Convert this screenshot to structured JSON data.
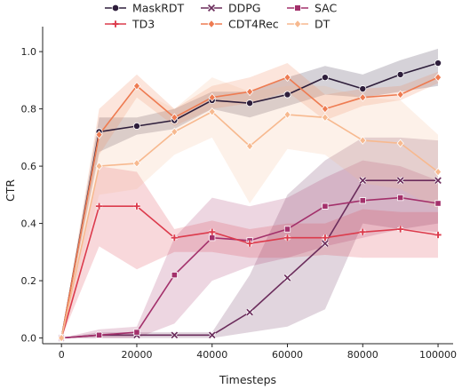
{
  "chart_data": {
    "type": "line",
    "xlabel": "Timesteps",
    "ylabel": "CTR",
    "xlim": [
      -5000,
      104000
    ],
    "ylim": [
      -0.02,
      1.05
    ],
    "x_ticks": [
      0,
      20000,
      40000,
      60000,
      80000,
      100000
    ],
    "y_ticks": [
      0.0,
      0.2,
      0.4,
      0.6,
      0.8,
      1.0
    ],
    "grid": false,
    "legend_position": "top-center",
    "x": [
      0,
      10000,
      20000,
      30000,
      40000,
      50000,
      60000,
      70000,
      80000,
      90000,
      100000
    ],
    "series": [
      {
        "name": "MaskRDT",
        "color": "#2e1e3b",
        "marker": "circle",
        "values": [
          0.0,
          0.72,
          0.74,
          0.76,
          0.83,
          0.82,
          0.85,
          0.91,
          0.87,
          0.92,
          0.96
        ],
        "lower": [
          0.0,
          0.65,
          0.71,
          0.73,
          0.8,
          0.77,
          0.81,
          0.85,
          0.84,
          0.86,
          0.88
        ],
        "upper": [
          0.0,
          0.77,
          0.77,
          0.8,
          0.86,
          0.86,
          0.91,
          0.95,
          0.92,
          0.97,
          1.01
        ]
      },
      {
        "name": "DDPG",
        "color": "#6b2d5c",
        "marker": "x",
        "values": [
          0.0,
          0.01,
          0.01,
          0.01,
          0.01,
          0.09,
          0.21,
          0.33,
          0.55,
          0.55,
          0.55
        ],
        "lower": [
          0.0,
          0.0,
          0.0,
          0.0,
          0.0,
          0.02,
          0.04,
          0.1,
          0.4,
          0.38,
          0.4
        ],
        "upper": [
          0.0,
          0.02,
          0.02,
          0.02,
          0.02,
          0.22,
          0.5,
          0.62,
          0.7,
          0.7,
          0.69
        ]
      },
      {
        "name": "SAC",
        "color": "#a3306b",
        "marker": "square",
        "values": [
          0.0,
          0.01,
          0.02,
          0.22,
          0.35,
          0.34,
          0.38,
          0.46,
          0.48,
          0.49,
          0.47
        ],
        "lower": [
          0.0,
          0.0,
          0.0,
          0.05,
          0.2,
          0.25,
          0.28,
          0.32,
          0.35,
          0.38,
          0.37
        ],
        "upper": [
          0.0,
          0.03,
          0.04,
          0.35,
          0.49,
          0.46,
          0.49,
          0.56,
          0.62,
          0.6,
          0.55
        ]
      },
      {
        "name": "TD3",
        "color": "#dc3b4c",
        "marker": "plus",
        "values": [
          0.0,
          0.46,
          0.46,
          0.35,
          0.37,
          0.33,
          0.35,
          0.35,
          0.37,
          0.38,
          0.36
        ],
        "lower": [
          0.0,
          0.32,
          0.24,
          0.3,
          0.3,
          0.28,
          0.28,
          0.29,
          0.28,
          0.28,
          0.28
        ],
        "upper": [
          0.0,
          0.6,
          0.58,
          0.38,
          0.41,
          0.38,
          0.4,
          0.4,
          0.45,
          0.44,
          0.44
        ]
      },
      {
        "name": "CDT4Rec",
        "color": "#ee7b51",
        "marker": "diamond",
        "values": [
          0.0,
          0.71,
          0.88,
          0.77,
          0.84,
          0.86,
          0.91,
          0.8,
          0.84,
          0.85,
          0.91
        ],
        "lower": [
          0.0,
          0.64,
          0.84,
          0.74,
          0.8,
          0.82,
          0.86,
          0.76,
          0.81,
          0.83,
          0.89
        ],
        "upper": [
          0.0,
          0.8,
          0.92,
          0.8,
          0.88,
          0.91,
          0.96,
          0.85,
          0.87,
          0.88,
          0.93
        ]
      },
      {
        "name": "DT",
        "color": "#f7b98f",
        "marker": "diamond",
        "values": [
          0.0,
          0.6,
          0.61,
          0.72,
          0.79,
          0.67,
          0.78,
          0.77,
          0.69,
          0.68,
          0.58
        ],
        "lower": [
          0.0,
          0.5,
          0.52,
          0.64,
          0.7,
          0.47,
          0.66,
          0.64,
          0.54,
          0.52,
          0.45
        ],
        "upper": [
          0.0,
          0.72,
          0.87,
          0.8,
          0.91,
          0.86,
          0.88,
          0.88,
          0.84,
          0.83,
          0.71
        ]
      }
    ]
  }
}
